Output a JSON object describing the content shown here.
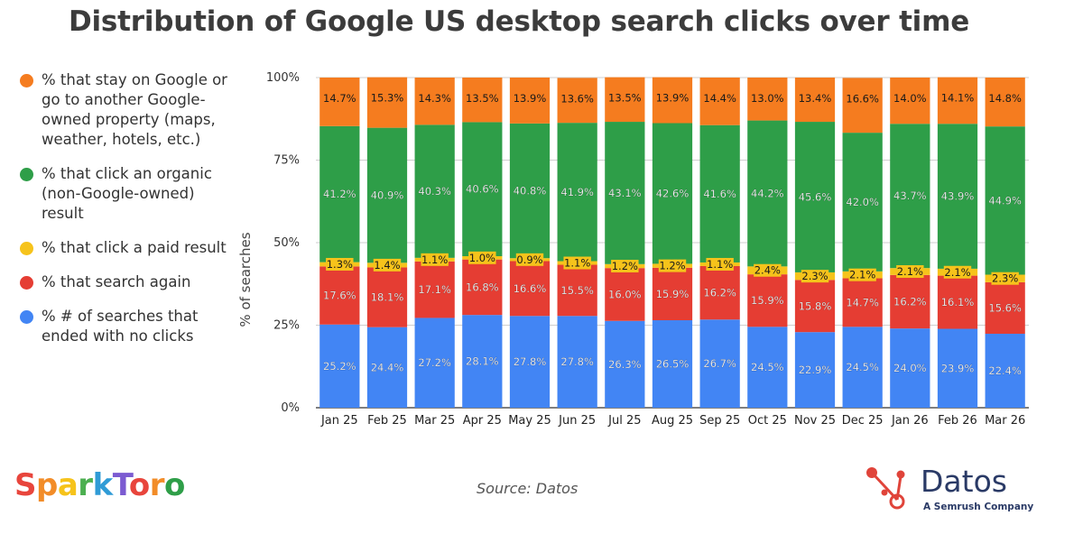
{
  "title": "Distribution of Google US desktop search clicks over time",
  "legend": [
    {
      "label": "% that stay on Google or go to another Google-owned property (maps, weather, hotels, etc.)",
      "color": "#f57c1f"
    },
    {
      "label": "% that click an organic (non-Google-owned) result",
      "color": "#2e9e48"
    },
    {
      "label": "% that click a paid result",
      "color": "#f6c31b"
    },
    {
      "label": "% that search again",
      "color": "#e53d33"
    },
    {
      "label": "% # of searches that ended with no clicks",
      "color": "#4285f4"
    }
  ],
  "source": "Source: Datos",
  "logos": {
    "left": "SparkToro",
    "right_name": "Datos",
    "right_tagline": "A Semrush Company"
  },
  "chart_data": {
    "type": "bar",
    "stacked": true,
    "title": "Distribution of Google US desktop search clicks over time",
    "xlabel": "",
    "ylabel": "% of searches",
    "ylim": [
      0,
      100
    ],
    "ytick_labels": [
      "0%",
      "25%",
      "50%",
      "75%",
      "100%"
    ],
    "ytick_values": [
      0,
      25,
      50,
      75,
      100
    ],
    "grid": true,
    "legend_position": "left",
    "categories": [
      "Jan 25",
      "Feb 25",
      "Mar 25",
      "Apr 25",
      "May 25",
      "Jun 25",
      "Jul 25",
      "Aug 25",
      "Sep 25",
      "Oct 25",
      "Nov 25",
      "Dec 25",
      "Jan 26",
      "Feb 26",
      "Mar 26"
    ],
    "series": [
      {
        "name": "% # of searches that ended with no clicks",
        "color": "#4285f4",
        "values": [
          25.2,
          24.4,
          27.2,
          28.1,
          27.8,
          27.8,
          26.3,
          26.5,
          26.7,
          24.5,
          22.9,
          24.5,
          24.0,
          23.9,
          22.4
        ],
        "labels": [
          "25.2%",
          "24.4%",
          "27.2%",
          "28.1%",
          "27.8%",
          "27.8%",
          "26.3%",
          "26.5%",
          "26.7%",
          "24.5%",
          "22.9%",
          "24.5%",
          "24.0%",
          "23.9%",
          "22.4%"
        ]
      },
      {
        "name": "% that search again",
        "color": "#e53d33",
        "values": [
          17.6,
          18.1,
          17.1,
          16.8,
          16.6,
          15.5,
          16.0,
          15.9,
          16.2,
          15.9,
          15.8,
          14.7,
          16.2,
          16.1,
          15.6
        ],
        "labels": [
          "17.6%",
          "18.1%",
          "17.1%",
          "16.8%",
          "16.6%",
          "15.5%",
          "16.0%",
          "15.9%",
          "16.2%",
          "15.9%",
          "15.8%",
          "14.7%",
          "16.2%",
          "16.1%",
          "15.6%"
        ]
      },
      {
        "name": "% that click a paid result",
        "color": "#f6c31b",
        "values": [
          1.3,
          1.4,
          1.1,
          1.0,
          0.9,
          1.1,
          1.2,
          1.2,
          1.1,
          2.4,
          2.3,
          2.1,
          2.1,
          2.1,
          2.3
        ],
        "labels": [
          "1.3%",
          "1.4%",
          "1.1%",
          "1.0%",
          "0.9%",
          "1.1%",
          "1.2%",
          "1.2%",
          "1.1%",
          "2.4%",
          "2.3%",
          "2.1%",
          "2.1%",
          "2.1%",
          "2.3%"
        ]
      },
      {
        "name": "% that click an organic (non-Google-owned) result",
        "color": "#2e9e48",
        "values": [
          41.2,
          40.9,
          40.3,
          40.6,
          40.8,
          41.9,
          43.1,
          42.6,
          41.6,
          44.2,
          45.6,
          42.0,
          43.7,
          43.9,
          44.9
        ],
        "labels": [
          "41.2%",
          "40.9%",
          "40.3%",
          "40.6%",
          "40.8%",
          "41.9%",
          "43.1%",
          "42.6%",
          "41.6%",
          "44.2%",
          "45.6%",
          "42.0%",
          "43.7%",
          "43.9%",
          "44.9%"
        ]
      },
      {
        "name": "% that stay on Google or go to another Google-owned property (maps, weather, hotels, etc.)",
        "color": "#f57c1f",
        "values": [
          14.7,
          15.3,
          14.3,
          13.5,
          13.9,
          13.6,
          13.5,
          13.9,
          14.4,
          13.0,
          13.4,
          16.6,
          14.0,
          14.1,
          14.8
        ],
        "labels": [
          "14.7%",
          "15.3%",
          "14.3%",
          "13.5%",
          "13.9%",
          "13.6%",
          "13.5%",
          "13.9%",
          "14.4%",
          "13.0%",
          "13.4%",
          "16.6%",
          "14.0%",
          "14.1%",
          "14.8%"
        ]
      }
    ]
  }
}
